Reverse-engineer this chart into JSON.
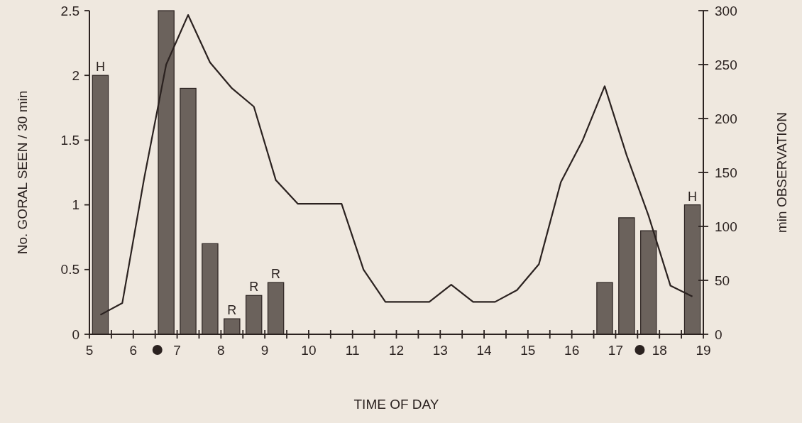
{
  "chart_data": {
    "type": "bar",
    "xlabel": "TIME OF DAY",
    "ylabel": "No. GORAL SEEN / 30 min",
    "y2label": "min OBSERVATION",
    "xlim": [
      5,
      19
    ],
    "xticks": [
      5,
      {
        "value": 5.5,
        "label": null
      },
      6,
      {
        "value": 6.5,
        "label": null
      },
      7,
      {
        "value": 7.5,
        "label": null
      },
      8,
      {
        "value": 8.5,
        "label": null
      },
      9,
      {
        "value": 9.5,
        "label": null
      },
      10,
      {
        "value": 10.5,
        "label": null
      },
      11,
      {
        "value": 11.5,
        "label": null
      },
      12,
      {
        "value": 12.5,
        "label": null
      },
      13,
      {
        "value": 13.5,
        "label": null
      },
      14,
      {
        "value": 14.5,
        "label": null
      },
      15,
      {
        "value": 15.5,
        "label": null
      },
      16,
      {
        "value": 16.5,
        "label": null
      },
      17,
      {
        "value": 17.5,
        "label": null
      },
      18,
      {
        "value": 18.5,
        "label": null
      },
      19
    ],
    "ylim": [
      0,
      2.5
    ],
    "yticks": [
      0,
      0.5,
      1,
      1.5,
      2,
      2.5
    ],
    "y2lim": [
      0,
      300
    ],
    "y2ticks": [
      0,
      50,
      100,
      150,
      200,
      250,
      300
    ],
    "series": [
      {
        "color": "#6b625c",
        "x": [
          5.25,
          6.75,
          7.25,
          7.75,
          8.25,
          8.75,
          9.25,
          16.75,
          17.25,
          17.75,
          18.75
        ],
        "values": [
          2,
          2.5,
          1.9,
          0.7,
          0.12,
          0.3,
          0.4,
          0.4,
          0.9,
          0.8,
          1.0
        ]
      },
      {
        "type": "line",
        "axis": "y2",
        "color": "#2b2220",
        "x": [
          5.25,
          5.75,
          6.25,
          6.75,
          7.25,
          7.75,
          8.25,
          8.75,
          9.25,
          9.75,
          10.25,
          10.75,
          11.25,
          11.75,
          12.25,
          12.75,
          13.25,
          13.75,
          14.25,
          14.75,
          15.25,
          15.75,
          16.25,
          16.75,
          17.25,
          17.75,
          18.25,
          18.75
        ],
        "values": [
          18,
          29,
          145,
          250,
          296,
          252,
          228,
          211,
          143,
          121,
          121,
          121,
          60,
          30,
          30,
          30,
          46,
          30,
          30,
          41,
          65,
          141,
          180,
          230,
          166,
          110,
          45,
          35
        ]
      }
    ],
    "annotations": [
      {
        "text": "H",
        "x": 5.25,
        "y": 2
      },
      {
        "text": "R",
        "x": 8.25,
        "y": 0.12
      },
      {
        "text": "R",
        "x": 8.75,
        "y": 0.3
      },
      {
        "text": "R",
        "x": 9.25,
        "y": 0.4
      },
      {
        "text": "H",
        "x": 18.75,
        "y": 1.0
      }
    ],
    "grid": false,
    "marker": "none",
    "line_style": "solid"
  }
}
